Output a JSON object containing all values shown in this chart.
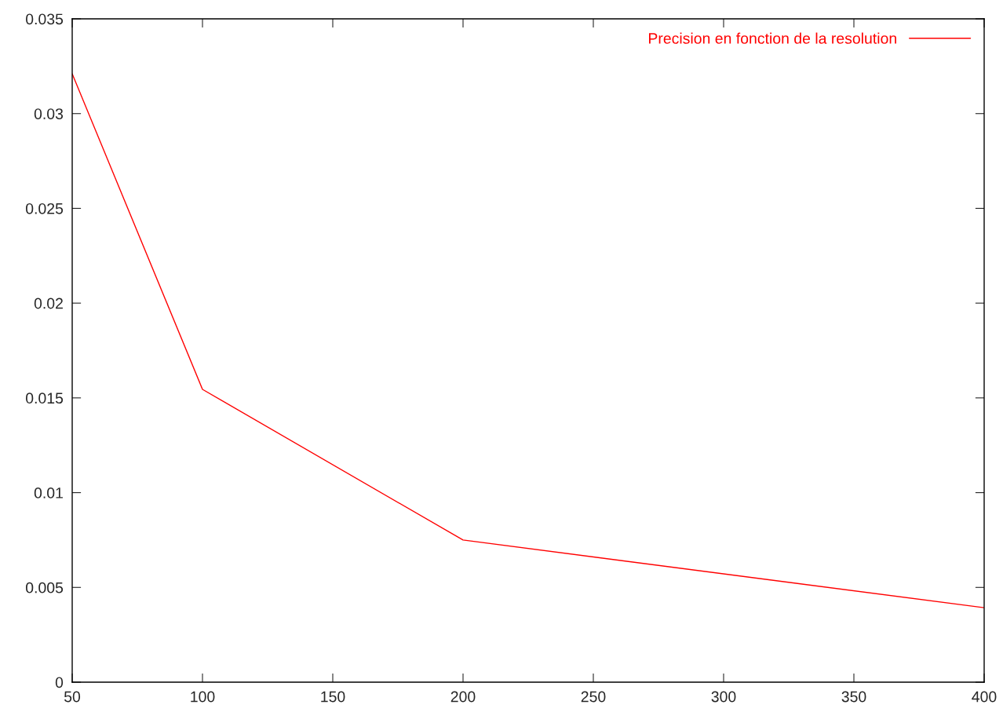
{
  "chart_data": {
    "type": "line",
    "x": [
      50,
      100,
      200,
      400
    ],
    "series": [
      {
        "name": "Precision en fonction de la resolution",
        "color": "#ff0000",
        "values": [
          0.0321,
          0.01545,
          0.0075,
          0.00393
        ]
      }
    ],
    "xlim": [
      50,
      400
    ],
    "xticks": [
      50,
      100,
      150,
      200,
      250,
      300,
      350,
      400
    ],
    "ylim": [
      0,
      0.035
    ],
    "yticks": [
      {
        "value": 0,
        "label": "0"
      },
      0.005,
      0.01,
      0.015,
      0.02,
      0.025,
      0.03,
      0.035
    ],
    "grid": false,
    "legend": "top right",
    "marker": "none",
    "line_style": "solid"
  }
}
